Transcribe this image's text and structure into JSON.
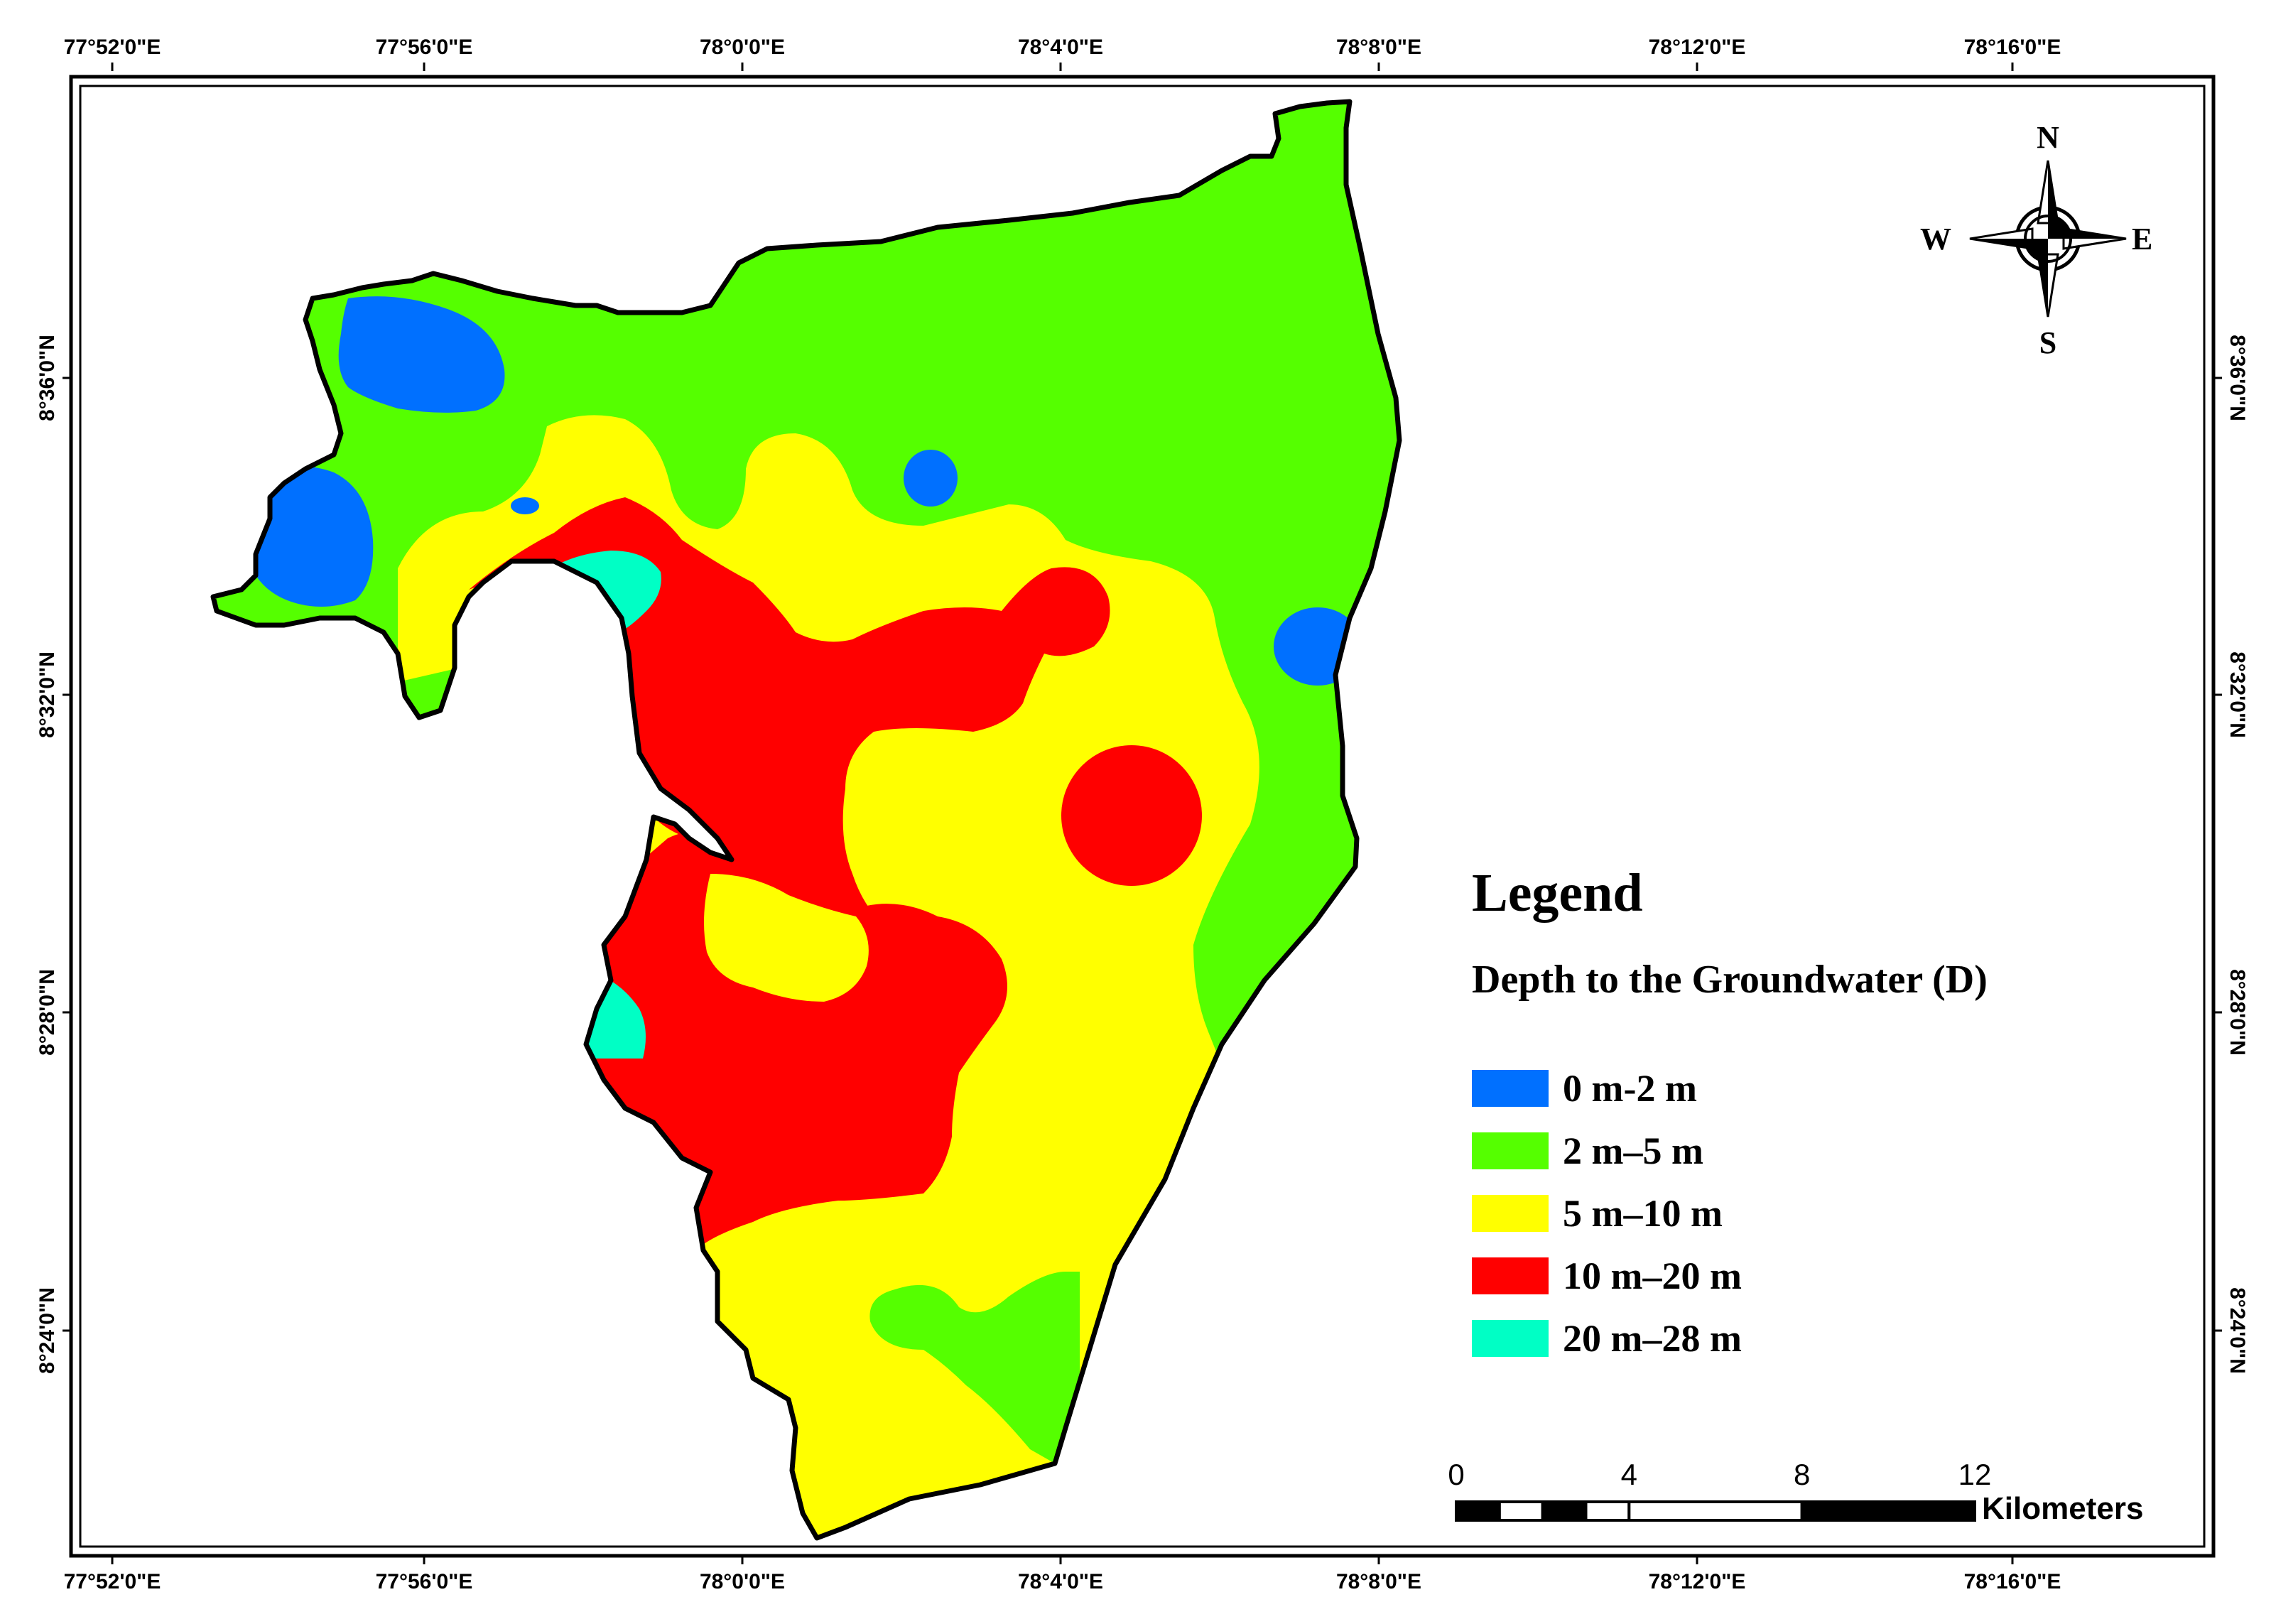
{
  "map": {
    "top_ticks": [
      "77°52'0\"E",
      "77°56'0\"E",
      "78°0'0\"E",
      "78°4'0\"E",
      "78°8'0\"E",
      "78°12'0\"E",
      "78°16'0\"E"
    ],
    "bottom_ticks": [
      "77°52'0\"E",
      "77°56'0\"E",
      "78°0'0\"E",
      "78°4'0\"E",
      "78°8'0\"E",
      "78°12'0\"E",
      "78°16'0\"E"
    ],
    "left_ticks": [
      "8°36'0\"N",
      "8°32'0\"N",
      "8°28'0\"N",
      "8°24'0\"N"
    ],
    "right_ticks": [
      "8°36'0\"N",
      "8°32'0\"N",
      "8°28'0\"N",
      "8°24'0\"N"
    ]
  },
  "legend": {
    "title": "Legend",
    "subtitle": "Depth to the Groundwater (D)",
    "items": [
      {
        "label": "0 m-2 m",
        "color": "#0070ff"
      },
      {
        "label": "2 m–5 m",
        "color": "#55ff00"
      },
      {
        "label": "5 m–10 m",
        "color": "#ffff00"
      },
      {
        "label": "10 m–20 m",
        "color": "#ff0000"
      },
      {
        "label": "20 m–28 m",
        "color": "#00ffc5"
      }
    ]
  },
  "scale_bar": {
    "labels": [
      "0",
      "4",
      "8",
      "12"
    ],
    "unit": "Kilometers"
  },
  "north_arrow": {
    "n": "N",
    "s": "S",
    "e": "E",
    "w": "W",
    "icon": "compass-rose-icon"
  },
  "colors": {
    "blue": "#0070ff",
    "green": "#55ff00",
    "yellow": "#ffff00",
    "red": "#ff0000",
    "cyan": "#00ffc5",
    "outline": "#000000"
  }
}
